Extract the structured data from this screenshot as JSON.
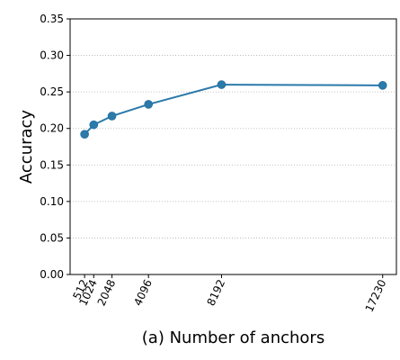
{
  "chart_data": {
    "type": "line",
    "xlabel": "(a) Number of anchors",
    "ylabel": "Accuracy",
    "x": [
      512,
      1024,
      2048,
      4096,
      8192,
      17230
    ],
    "x_tick_labels": [
      "512",
      "1024",
      "2048",
      "4096",
      "8192",
      "17230"
    ],
    "series": [
      {
        "values": [
          0.192,
          0.205,
          0.217,
          0.233,
          0.26,
          0.259
        ],
        "color": "#2a7aaa",
        "marker": "circle"
      }
    ],
    "xlim": [
      -300,
      18000
    ],
    "ylim": [
      0.0,
      0.35
    ],
    "y_ticks": [
      0.0,
      0.05,
      0.1,
      0.15,
      0.2,
      0.25,
      0.3,
      0.35
    ],
    "y_tick_labels": [
      "0.00",
      "0.05",
      "0.10",
      "0.15",
      "0.20",
      "0.25",
      "0.30",
      "0.35"
    ],
    "grid": "horizontal-dotted",
    "legend": "none"
  }
}
